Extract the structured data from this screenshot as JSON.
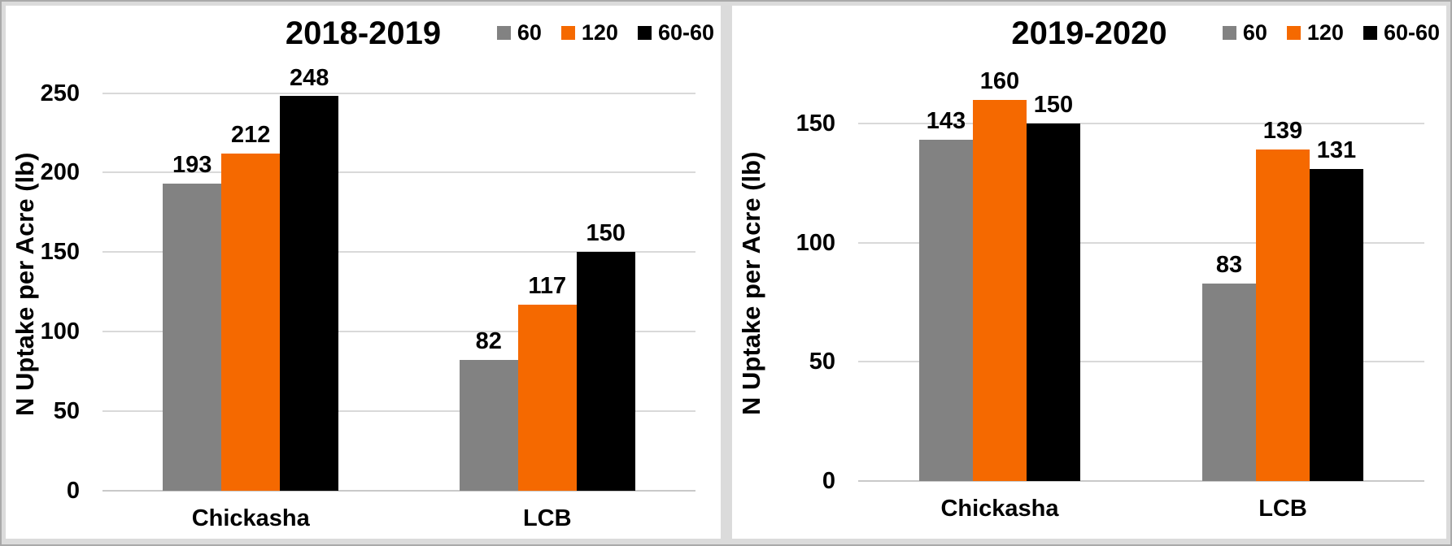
{
  "page": {
    "background": "#DBDBDB",
    "border_color": "#A9A9A9",
    "panel_background": "#FFFFFF",
    "gridline_color": "#D9D9D9",
    "axis_line_color": "#C9C9C9",
    "text_color": "#000000"
  },
  "chart_data": [
    {
      "type": "bar",
      "title": "2018-2019",
      "ylabel": "N Uptake per Acre (lb)",
      "xlabel": "",
      "categories": [
        "Chickasha",
        "LCB"
      ],
      "series": [
        {
          "name": "60",
          "color": "#828282",
          "values": [
            193,
            82
          ]
        },
        {
          "name": "120",
          "color": "#F56900",
          "values": [
            212,
            117
          ]
        },
        {
          "name": "60-60",
          "color": "#000000",
          "values": [
            248,
            150
          ]
        }
      ],
      "yticks": [
        0,
        50,
        100,
        150,
        200,
        250
      ],
      "ylim": [
        0,
        260
      ],
      "grid": "horizontal",
      "legend_position": "top-right",
      "data_labels": true
    },
    {
      "type": "bar",
      "title": "2019-2020",
      "ylabel": "N Uptake per Acre (lb)",
      "xlabel": "",
      "categories": [
        "Chickasha",
        "LCB"
      ],
      "series": [
        {
          "name": "60",
          "color": "#828282",
          "values": [
            143,
            83
          ]
        },
        {
          "name": "120",
          "color": "#F56900",
          "values": [
            160,
            139
          ]
        },
        {
          "name": "60-60",
          "color": "#000000",
          "values": [
            150,
            131
          ]
        }
      ],
      "yticks": [
        0,
        50,
        100,
        150
      ],
      "ylim": [
        0,
        166
      ],
      "grid": "horizontal",
      "legend_position": "top-right",
      "data_labels": true
    }
  ]
}
